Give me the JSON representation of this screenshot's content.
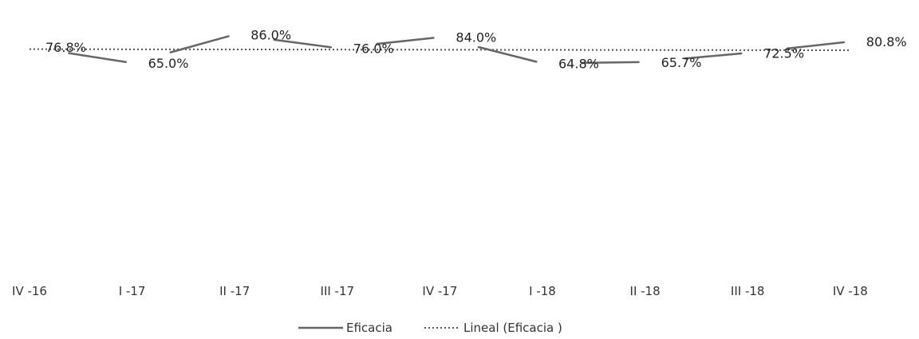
{
  "chart_data": {
    "type": "line",
    "categories": [
      "IV -16",
      "I -17",
      "II -17",
      "III -17",
      "IV -17",
      "I -18",
      "II -18",
      "III -18",
      "IV -18"
    ],
    "series": [
      {
        "name": "Eficacia",
        "values": [
          76.8,
          65.0,
          86.0,
          76.0,
          84.0,
          64.8,
          65.7,
          72.5,
          80.8
        ],
        "labels": [
          "76.8%",
          "65.0%",
          "86.0%",
          "76.0%",
          "84.0%",
          "64.8%",
          "65.7%",
          "72.5%",
          "80.8%"
        ],
        "color": "#666666"
      },
      {
        "name": "Lineal (Eficacia )",
        "type": "trendline",
        "values": [
          75.2,
          75.1,
          75.0,
          74.9,
          74.8,
          74.7,
          74.6,
          74.5,
          74.4
        ],
        "style": "dotted",
        "color": "#555555"
      }
    ],
    "ylim": [
      0,
      100
    ],
    "grid": false,
    "legend_position": "bottom"
  }
}
